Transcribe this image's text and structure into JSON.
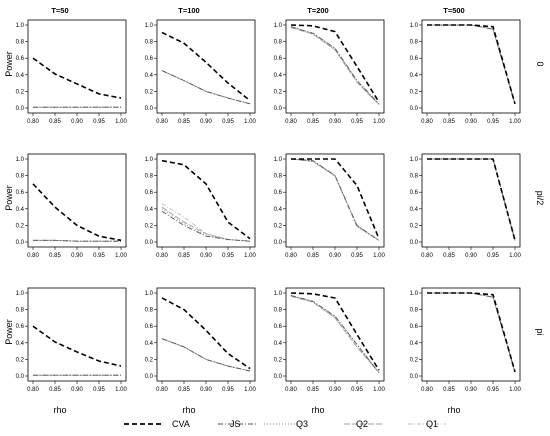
{
  "figure": {
    "column_titles": [
      "T=50",
      "T=100",
      "T=200",
      "T=500"
    ],
    "row_labels": [
      "0",
      "pi/2",
      "pi"
    ],
    "xlabel": "rho",
    "ylabel": "Power"
  },
  "series_styles": [
    {
      "name": "CVA",
      "color": "#000000",
      "dash": "5,3",
      "width": 1.6
    },
    {
      "name": "JS",
      "color": "#555555",
      "dash": "5,2,1,2",
      "width": 0.9
    },
    {
      "name": "Q3",
      "color": "#8c8c8c",
      "dash": "1,2",
      "width": 0.9
    },
    {
      "name": "Q2",
      "color": "#a0a0a0",
      "dash": "6,2",
      "width": 0.9
    },
    {
      "name": "Q1",
      "color": "#bdbdbd",
      "dash": "4,2,1,2",
      "width": 0.9
    }
  ],
  "chart_data": [
    {
      "type": "line",
      "title": "T=50",
      "row_label": "0",
      "x": [
        0.8,
        0.85,
        0.9,
        0.95,
        1.0
      ],
      "xlim": [
        0.8,
        1.0
      ],
      "ylim": [
        0,
        1
      ],
      "xticks": [
        "0.80",
        "0.85",
        "0.90",
        "0.95",
        "1.00"
      ],
      "yticks": [
        "0.0",
        "0.2",
        "0.4",
        "0.6",
        "0.8",
        "1.0"
      ],
      "series": [
        {
          "name": "CVA",
          "values": [
            0.6,
            0.41,
            0.29,
            0.17,
            0.12
          ]
        },
        {
          "name": "JS",
          "values": [
            0.01,
            0.01,
            0.01,
            0.01,
            0.01
          ]
        },
        {
          "name": "Q3",
          "values": [
            0.01,
            0.01,
            0.01,
            0.01,
            0.01
          ]
        },
        {
          "name": "Q2",
          "values": [
            0.01,
            0.01,
            0.01,
            0.01,
            0.01
          ]
        },
        {
          "name": "Q1",
          "values": [
            0.01,
            0.01,
            0.01,
            0.01,
            0.01
          ]
        }
      ]
    },
    {
      "type": "line",
      "title": "T=100",
      "row_label": "0",
      "x": [
        0.8,
        0.85,
        0.9,
        0.95,
        1.0
      ],
      "xlim": [
        0.8,
        1.0
      ],
      "ylim": [
        0,
        1
      ],
      "xticks": [
        "0.80",
        "0.85",
        "0.90",
        "0.95",
        "1.00"
      ],
      "yticks": [
        "0.0",
        "0.2",
        "0.4",
        "0.6",
        "0.8",
        "1.0"
      ],
      "series": [
        {
          "name": "CVA",
          "values": [
            0.91,
            0.78,
            0.55,
            0.3,
            0.09
          ]
        },
        {
          "name": "JS",
          "values": [
            0.45,
            0.33,
            0.2,
            0.12,
            0.05
          ]
        },
        {
          "name": "Q3",
          "values": [
            0.45,
            0.33,
            0.2,
            0.12,
            0.05
          ]
        },
        {
          "name": "Q2",
          "values": [
            0.45,
            0.33,
            0.2,
            0.12,
            0.05
          ]
        },
        {
          "name": "Q1",
          "values": [
            0.45,
            0.33,
            0.2,
            0.12,
            0.05
          ]
        }
      ]
    },
    {
      "type": "line",
      "title": "T=200",
      "row_label": "0",
      "x": [
        0.8,
        0.85,
        0.9,
        0.95,
        1.0
      ],
      "xlim": [
        0.8,
        1.0
      ],
      "ylim": [
        0,
        1
      ],
      "xticks": [
        "0.80",
        "0.85",
        "0.90",
        "0.95",
        "1.00"
      ],
      "yticks": [
        "0.0",
        "0.2",
        "0.4",
        "0.6",
        "0.8",
        "1.0"
      ],
      "series": [
        {
          "name": "CVA",
          "values": [
            1.0,
            0.99,
            0.92,
            0.5,
            0.07
          ]
        },
        {
          "name": "JS",
          "values": [
            0.98,
            0.9,
            0.72,
            0.33,
            0.05
          ]
        },
        {
          "name": "Q3",
          "values": [
            0.98,
            0.9,
            0.72,
            0.33,
            0.05
          ]
        },
        {
          "name": "Q2",
          "values": [
            0.97,
            0.89,
            0.7,
            0.31,
            0.04
          ]
        },
        {
          "name": "Q1",
          "values": [
            0.97,
            0.89,
            0.7,
            0.31,
            0.04
          ]
        }
      ]
    },
    {
      "type": "line",
      "title": "T=500",
      "row_label": "0",
      "x": [
        0.8,
        0.85,
        0.9,
        0.95,
        1.0
      ],
      "xlim": [
        0.8,
        1.0
      ],
      "ylim": [
        0,
        1
      ],
      "xticks": [
        "0.80",
        "0.85",
        "0.90",
        "0.95",
        "1.00"
      ],
      "yticks": [
        "0.0",
        "0.2",
        "0.4",
        "0.6",
        "0.8",
        "1.0"
      ],
      "series": [
        {
          "name": "CVA",
          "values": [
            1.0,
            1.0,
            1.0,
            0.98,
            0.05
          ]
        },
        {
          "name": "JS",
          "values": [
            1.0,
            1.0,
            1.0,
            0.95,
            0.05
          ]
        },
        {
          "name": "Q3",
          "values": [
            1.0,
            1.0,
            1.0,
            0.95,
            0.05
          ]
        },
        {
          "name": "Q2",
          "values": [
            1.0,
            1.0,
            1.0,
            0.95,
            0.05
          ]
        },
        {
          "name": "Q1",
          "values": [
            1.0,
            1.0,
            1.0,
            0.95,
            0.05
          ]
        }
      ]
    },
    {
      "type": "line",
      "title": "",
      "row_label": "pi/2",
      "x": [
        0.8,
        0.85,
        0.9,
        0.95,
        1.0
      ],
      "xlim": [
        0.8,
        1.0
      ],
      "ylim": [
        0,
        1
      ],
      "xticks": [
        "0.80",
        "0.85",
        "0.90",
        "0.95",
        "1.00"
      ],
      "yticks": [
        "0.0",
        "0.2",
        "0.4",
        "0.6",
        "0.8",
        "1.0"
      ],
      "series": [
        {
          "name": "CVA",
          "values": [
            0.7,
            0.42,
            0.2,
            0.07,
            0.02
          ]
        },
        {
          "name": "JS",
          "values": [
            0.02,
            0.02,
            0.01,
            0.01,
            0.01
          ]
        },
        {
          "name": "Q3",
          "values": [
            0.02,
            0.02,
            0.01,
            0.01,
            0.01
          ]
        },
        {
          "name": "Q2",
          "values": [
            0.02,
            0.02,
            0.01,
            0.01,
            0.01
          ]
        },
        {
          "name": "Q1",
          "values": [
            0.02,
            0.02,
            0.01,
            0.01,
            0.01
          ]
        }
      ]
    },
    {
      "type": "line",
      "title": "",
      "row_label": "pi/2",
      "x": [
        0.8,
        0.85,
        0.9,
        0.95,
        1.0
      ],
      "xlim": [
        0.8,
        1.0
      ],
      "ylim": [
        0,
        1
      ],
      "xticks": [
        "0.80",
        "0.85",
        "0.90",
        "0.95",
        "1.00"
      ],
      "yticks": [
        "0.0",
        "0.2",
        "0.4",
        "0.6",
        "0.8",
        "1.0"
      ],
      "series": [
        {
          "name": "CVA",
          "values": [
            0.98,
            0.93,
            0.7,
            0.24,
            0.04
          ]
        },
        {
          "name": "JS",
          "values": [
            0.37,
            0.2,
            0.07,
            0.03,
            0.01
          ]
        },
        {
          "name": "Q3",
          "values": [
            0.4,
            0.22,
            0.08,
            0.03,
            0.01
          ]
        },
        {
          "name": "Q2",
          "values": [
            0.42,
            0.24,
            0.1,
            0.03,
            0.01
          ]
        },
        {
          "name": "Q1",
          "values": [
            0.46,
            0.3,
            0.1,
            0.03,
            0.01
          ]
        }
      ]
    },
    {
      "type": "line",
      "title": "",
      "row_label": "pi/2",
      "x": [
        0.8,
        0.85,
        0.9,
        0.95,
        1.0
      ],
      "xlim": [
        0.8,
        1.0
      ],
      "ylim": [
        0,
        1
      ],
      "xticks": [
        "0.80",
        "0.85",
        "0.90",
        "0.95",
        "1.00"
      ],
      "yticks": [
        "0.0",
        "0.2",
        "0.4",
        "0.6",
        "0.8",
        "1.0"
      ],
      "series": [
        {
          "name": "CVA",
          "values": [
            1.0,
            1.0,
            1.0,
            0.68,
            0.04
          ]
        },
        {
          "name": "JS",
          "values": [
            1.0,
            0.98,
            0.8,
            0.2,
            0.02
          ]
        },
        {
          "name": "Q3",
          "values": [
            1.0,
            0.98,
            0.8,
            0.2,
            0.02
          ]
        },
        {
          "name": "Q2",
          "values": [
            1.0,
            0.97,
            0.8,
            0.19,
            0.02
          ]
        },
        {
          "name": "Q1",
          "values": [
            1.0,
            0.97,
            0.79,
            0.18,
            0.02
          ]
        }
      ]
    },
    {
      "type": "line",
      "title": "",
      "row_label": "pi/2",
      "x": [
        0.8,
        0.85,
        0.9,
        0.95,
        1.0
      ],
      "xlim": [
        0.8,
        1.0
      ],
      "ylim": [
        0,
        1
      ],
      "xticks": [
        "0.80",
        "0.85",
        "0.90",
        "0.95",
        "1.00"
      ],
      "yticks": [
        "0.0",
        "0.2",
        "0.4",
        "0.6",
        "0.8",
        "1.0"
      ],
      "series": [
        {
          "name": "CVA",
          "values": [
            1.0,
            1.0,
            1.0,
            1.0,
            0.02
          ]
        },
        {
          "name": "JS",
          "values": [
            1.0,
            1.0,
            1.0,
            1.0,
            0.02
          ]
        },
        {
          "name": "Q3",
          "values": [
            1.0,
            1.0,
            1.0,
            1.0,
            0.02
          ]
        },
        {
          "name": "Q2",
          "values": [
            1.0,
            1.0,
            1.0,
            1.0,
            0.02
          ]
        },
        {
          "name": "Q1",
          "values": [
            1.0,
            1.0,
            1.0,
            1.0,
            0.02
          ]
        }
      ]
    },
    {
      "type": "line",
      "title": "",
      "row_label": "pi",
      "x": [
        0.8,
        0.85,
        0.9,
        0.95,
        1.0
      ],
      "xlim": [
        0.8,
        1.0
      ],
      "ylim": [
        0,
        1
      ],
      "xticks": [
        "0.80",
        "0.85",
        "0.90",
        "0.95",
        "1.00"
      ],
      "yticks": [
        "0.0",
        "0.2",
        "0.4",
        "0.6",
        "0.8",
        "1.0"
      ],
      "series": [
        {
          "name": "CVA",
          "values": [
            0.6,
            0.41,
            0.29,
            0.18,
            0.12
          ]
        },
        {
          "name": "JS",
          "values": [
            0.01,
            0.01,
            0.01,
            0.01,
            0.01
          ]
        },
        {
          "name": "Q3",
          "values": [
            0.01,
            0.01,
            0.01,
            0.01,
            0.01
          ]
        },
        {
          "name": "Q2",
          "values": [
            0.01,
            0.01,
            0.01,
            0.01,
            0.01
          ]
        },
        {
          "name": "Q1",
          "values": [
            0.01,
            0.01,
            0.01,
            0.01,
            0.01
          ]
        }
      ]
    },
    {
      "type": "line",
      "title": "",
      "row_label": "pi",
      "x": [
        0.8,
        0.85,
        0.9,
        0.95,
        1.0
      ],
      "xlim": [
        0.8,
        1.0
      ],
      "ylim": [
        0,
        1
      ],
      "xticks": [
        "0.80",
        "0.85",
        "0.90",
        "0.95",
        "1.00"
      ],
      "yticks": [
        "0.0",
        "0.2",
        "0.4",
        "0.6",
        "0.8",
        "1.0"
      ],
      "series": [
        {
          "name": "CVA",
          "values": [
            0.94,
            0.8,
            0.55,
            0.27,
            0.09
          ]
        },
        {
          "name": "JS",
          "values": [
            0.45,
            0.35,
            0.2,
            0.12,
            0.06
          ]
        },
        {
          "name": "Q3",
          "values": [
            0.45,
            0.35,
            0.2,
            0.12,
            0.06
          ]
        },
        {
          "name": "Q2",
          "values": [
            0.45,
            0.35,
            0.2,
            0.12,
            0.06
          ]
        },
        {
          "name": "Q1",
          "values": [
            0.45,
            0.35,
            0.2,
            0.12,
            0.06
          ]
        }
      ]
    },
    {
      "type": "line",
      "title": "",
      "row_label": "pi",
      "x": [
        0.8,
        0.85,
        0.9,
        0.95,
        1.0
      ],
      "xlim": [
        0.8,
        1.0
      ],
      "ylim": [
        0,
        1
      ],
      "xticks": [
        "0.80",
        "0.85",
        "0.90",
        "0.95",
        "1.00"
      ],
      "yticks": [
        "0.0",
        "0.2",
        "0.4",
        "0.6",
        "0.8",
        "1.0"
      ],
      "series": [
        {
          "name": "CVA",
          "values": [
            1.0,
            0.99,
            0.94,
            0.5,
            0.07
          ]
        },
        {
          "name": "JS",
          "values": [
            0.97,
            0.9,
            0.72,
            0.38,
            0.04
          ]
        },
        {
          "name": "Q3",
          "values": [
            0.97,
            0.9,
            0.72,
            0.38,
            0.04
          ]
        },
        {
          "name": "Q2",
          "values": [
            0.96,
            0.89,
            0.7,
            0.35,
            0.04
          ]
        },
        {
          "name": "Q1",
          "values": [
            0.96,
            0.89,
            0.7,
            0.35,
            0.04
          ]
        }
      ]
    },
    {
      "type": "line",
      "title": "",
      "row_label": "pi",
      "x": [
        0.8,
        0.85,
        0.9,
        0.95,
        1.0
      ],
      "xlim": [
        0.8,
        1.0
      ],
      "ylim": [
        0,
        1
      ],
      "xticks": [
        "0.80",
        "0.85",
        "0.90",
        "0.95",
        "1.00"
      ],
      "yticks": [
        "0.0",
        "0.2",
        "0.4",
        "0.6",
        "0.8",
        "1.0"
      ],
      "series": [
        {
          "name": "CVA",
          "values": [
            1.0,
            1.0,
            1.0,
            0.98,
            0.05
          ]
        },
        {
          "name": "JS",
          "values": [
            1.0,
            1.0,
            1.0,
            0.95,
            0.05
          ]
        },
        {
          "name": "Q3",
          "values": [
            1.0,
            1.0,
            1.0,
            0.95,
            0.05
          ]
        },
        {
          "name": "Q2",
          "values": [
            1.0,
            1.0,
            1.0,
            0.95,
            0.05
          ]
        },
        {
          "name": "Q1",
          "values": [
            1.0,
            1.0,
            1.0,
            0.95,
            0.05
          ]
        }
      ]
    }
  ]
}
